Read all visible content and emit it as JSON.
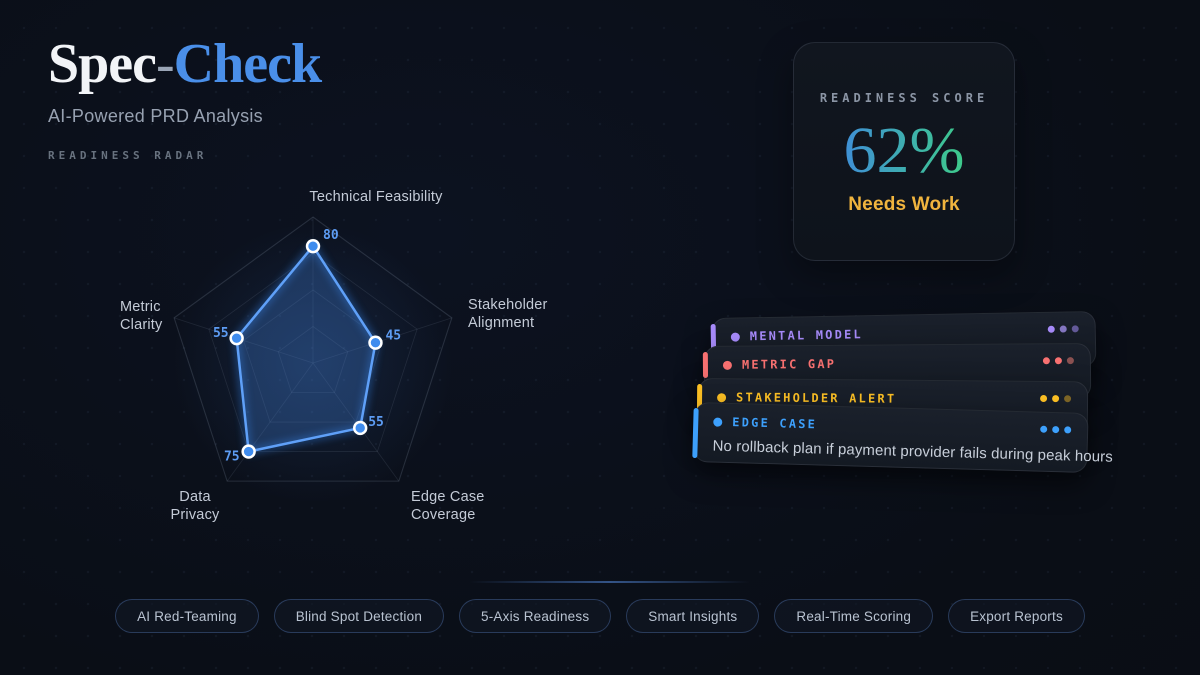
{
  "brand": {
    "title_primary": "Spec",
    "title_dash": "-",
    "title_accent": "Check",
    "subtitle": "AI-Powered PRD Analysis",
    "section_label": "READINESS RADAR",
    "accent_color": "#4a8fe9"
  },
  "score_card": {
    "label": "READINESS SCORE",
    "value": "62%",
    "status": "Needs Work",
    "status_color": "#f0b43e",
    "value_gradient": [
      "#3f8fd6",
      "#3ecb8b"
    ]
  },
  "chart_data": {
    "type": "radar",
    "title": "Readiness Radar",
    "categories": [
      "Technical Feasibility",
      "Stakeholder Alignment",
      "Edge Case Coverage",
      "Data Privacy",
      "Metric Clarity"
    ],
    "values": [
      80,
      45,
      55,
      75,
      55
    ],
    "rmax": 100,
    "ring_levels": [
      25,
      50,
      75,
      100
    ],
    "grid_on": true,
    "stroke_color": "#5fa0f8",
    "glow_color": "#2f7bdd",
    "fill_color": "rgba(66,130,220,0.30)",
    "point_fill": "#3f8cee",
    "point_ring": "#ffffff",
    "value_label_color": "#5d9cf3",
    "grid_color": "rgba(148,163,184,0.20)"
  },
  "insights": {
    "cards": [
      {
        "label": "MENTAL MODEL",
        "accent": "#a78bfa",
        "trail_dots": [
          "#a78bfa",
          "#8577c2",
          "#645a99"
        ],
        "body": ""
      },
      {
        "label": "METRIC GAP",
        "accent": "#f87171",
        "trail_dots": [
          "#f87171",
          "#f87171",
          "#8a5151"
        ],
        "body": ""
      },
      {
        "label": "STAKEHOLDER ALERT",
        "accent": "#fbbf24",
        "trail_dots": [
          "#fbbf24",
          "#fbbf24",
          "#7d6526"
        ],
        "body": ""
      },
      {
        "label": "EDGE CASE",
        "accent": "#3da0fc",
        "trail_dots": [
          "#3da0fc",
          "#3da0fc",
          "#3da0fc"
        ],
        "body": "No rollback plan if payment provider fails during peak hours"
      }
    ]
  },
  "features": {
    "buttons": [
      "AI Red-Teaming",
      "Blind Spot Detection",
      "5-Axis Readiness",
      "Smart Insights",
      "Real-Time Scoring",
      "Export Reports"
    ]
  }
}
